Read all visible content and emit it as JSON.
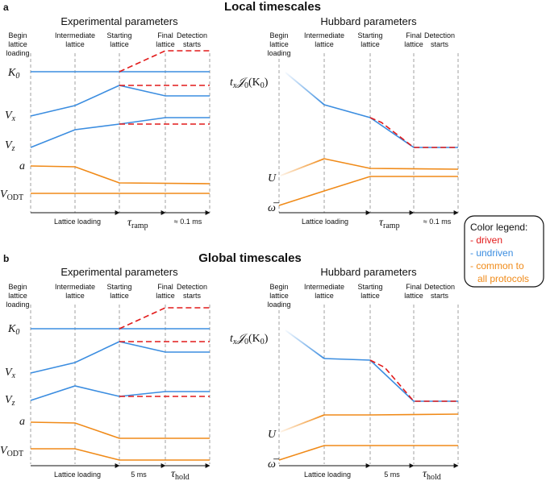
{
  "figure": {
    "section_a_letter": "a",
    "section_a_title": "Local timescales",
    "section_b_letter": "b",
    "section_b_title": "Global timescales",
    "exp_panel_title": "Experimental parameters",
    "hub_panel_title": "Hubbard parameters",
    "stage_labels": {
      "begin": [
        "Begin",
        "lattice",
        "loading"
      ],
      "intermediate": [
        "Intermediate",
        "lattice"
      ],
      "starting": [
        "Starting",
        "lattice"
      ],
      "final": [
        "Final",
        "lattice"
      ],
      "detection": [
        "Detection",
        "starts"
      ]
    },
    "param_labels": {
      "K0": "K",
      "K0_sub": "0",
      "Vx": "V",
      "Vx_sub": "x",
      "Vz": "V",
      "Vz_sub": "z",
      "a": "a",
      "VODT": "V",
      "VODT_sub": "ODT",
      "tJ": "t",
      "tJ_sub": "x",
      "tJ_rest": "𝒥",
      "tJ_sub2": "0",
      "tJ_arg": "(K",
      "tJ_arg_sub": "0",
      "tJ_close": ")",
      "U": "U",
      "omega": "ω̅"
    },
    "time_axis": {
      "lattice_loading": "Lattice loading",
      "tau": "τ",
      "ramp_sub": "ramp",
      "hold_sub": "hold",
      "detect_local": "≈ 0.1 ms",
      "five_ms": "5 ms"
    },
    "legend": {
      "title": "Color legend:",
      "driven": "- driven",
      "undriven": "- undriven",
      "common_1": "- common to",
      "common_2": "all protocols",
      "colors": {
        "driven": "#e21a1a",
        "undriven": "#3b8de0",
        "common": "#f08a18"
      }
    }
  }
}
